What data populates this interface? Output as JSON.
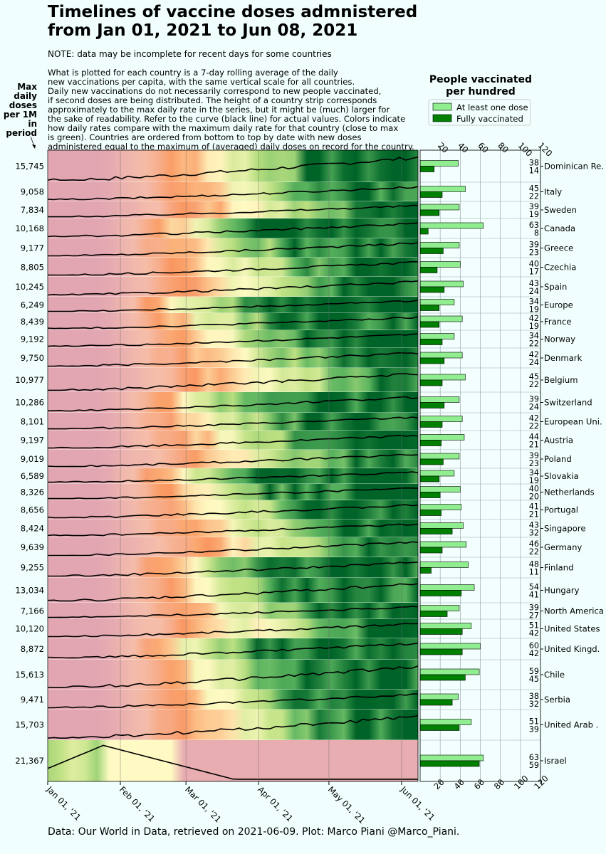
{
  "title": "Timelines of vaccine doses admnistered\nfrom Jan 01, 2021 to Jun 08, 2021",
  "note": "NOTE: data may be incomplete for recent days for some countries",
  "description": "What is plotted for each country is a 7-day rolling average of the daily\nnew vaccinations per capita, with the same vertical scale for all countries.\nDaily new vaccinations do not necessarily correspond to new people vaccinated,\nif second doses are being distributed. The height of a country strip corresponds\napproximately to the max daily rate in the series, but it might be (much) larger for\nthe sake of readability. Refer to the curve (black line) for actual values. Colors indicate\nhow daily rates compare with the maximum daily rate for that country (close to max\nis green). Countries are ordered from bottom to top by date with new doses\nadministered equal to the maximum of (averaged) daily doses on record for the country.",
  "max_label": "Max\ndaily\ndoses\nper 1M\nin\nperiod",
  "right_title": "People vaccinated\nper hundred",
  "legend": {
    "at_least_one": "At least one dose",
    "fully": "Fully vaccinated"
  },
  "footer": "Data: Our World in Data, retrieved on 2021-06-09. Plot: Marco Piani @Marco_Piani.",
  "colors": {
    "background": "#f0fffe",
    "at_least_one": "#90ee90",
    "fully": "#008000",
    "curve": "#000000"
  },
  "chart_data": [
    {
      "type": "area",
      "title": "Timelines of vaccine doses admnistered from Jan 01, 2021 to Jun 08, 2021",
      "xlabel": "",
      "ylabel": "Max daily doses per 1M in period",
      "x_range": [
        "2021-01-01",
        "2021-06-08"
      ],
      "x_ticks": [
        "Jan 01, '21",
        "Feb 01, '21",
        "Mar 01, '21",
        "Apr 01, '21",
        "May 01, '21",
        "Jun 01, '21"
      ],
      "rows": [
        {
          "country": "Dominican Re.",
          "max_daily_per_1M": "15,745"
        },
        {
          "country": "Italy",
          "max_daily_per_1M": "9,058"
        },
        {
          "country": "Sweden",
          "max_daily_per_1M": "7,834"
        },
        {
          "country": "Canada",
          "max_daily_per_1M": "10,168"
        },
        {
          "country": "Greece",
          "max_daily_per_1M": "9,177"
        },
        {
          "country": "Czechia",
          "max_daily_per_1M": "8,805"
        },
        {
          "country": "Spain",
          "max_daily_per_1M": "10,245"
        },
        {
          "country": "Europe",
          "max_daily_per_1M": "6,249"
        },
        {
          "country": "France",
          "max_daily_per_1M": "8,439"
        },
        {
          "country": "Norway",
          "max_daily_per_1M": "9,192"
        },
        {
          "country": "Denmark",
          "max_daily_per_1M": "9,750"
        },
        {
          "country": "Belgium",
          "max_daily_per_1M": "10,977"
        },
        {
          "country": "Switzerland",
          "max_daily_per_1M": "10,286"
        },
        {
          "country": "European Uni.",
          "max_daily_per_1M": "8,101"
        },
        {
          "country": "Austria",
          "max_daily_per_1M": "9,197"
        },
        {
          "country": "Poland",
          "max_daily_per_1M": "9,019"
        },
        {
          "country": "Slovakia",
          "max_daily_per_1M": "6,589"
        },
        {
          "country": "Netherlands",
          "max_daily_per_1M": "8,326"
        },
        {
          "country": "Portugal",
          "max_daily_per_1M": "8,656"
        },
        {
          "country": "Singapore",
          "max_daily_per_1M": "8,424"
        },
        {
          "country": "Germany",
          "max_daily_per_1M": "9,639"
        },
        {
          "country": "Finland",
          "max_daily_per_1M": "9,255"
        },
        {
          "country": "Hungary",
          "max_daily_per_1M": "13,034"
        },
        {
          "country": "North America",
          "max_daily_per_1M": "7,166"
        },
        {
          "country": "United States",
          "max_daily_per_1M": "10,120"
        },
        {
          "country": "United Kingd.",
          "max_daily_per_1M": "8,872"
        },
        {
          "country": "Chile",
          "max_daily_per_1M": "15,613"
        },
        {
          "country": "Serbia",
          "max_daily_per_1M": "9,471"
        },
        {
          "country": "United Arab .",
          "max_daily_per_1M": "15,703"
        },
        {
          "country": "Israel",
          "max_daily_per_1M": "21,367"
        }
      ]
    },
    {
      "type": "bar",
      "title": "People vaccinated per hundred",
      "orientation": "horizontal",
      "xlim": [
        0,
        120
      ],
      "x_ticks": [
        20,
        40,
        60,
        80,
        100,
        120
      ],
      "grid": true,
      "legend": "top",
      "categories": [
        "Dominican Re.",
        "Italy",
        "Sweden",
        "Canada",
        "Greece",
        "Czechia",
        "Spain",
        "Europe",
        "France",
        "Norway",
        "Denmark",
        "Belgium",
        "Switzerland",
        "European Uni.",
        "Austria",
        "Poland",
        "Slovakia",
        "Netherlands",
        "Portugal",
        "Singapore",
        "Germany",
        "Finland",
        "Hungary",
        "North America",
        "United States",
        "United Kingd.",
        "Chile",
        "Serbia",
        "United Arab .",
        "Israel"
      ],
      "series": [
        {
          "name": "At least one dose",
          "values": [
            38,
            45,
            39,
            63,
            39,
            40,
            43,
            34,
            42,
            34,
            42,
            45,
            39,
            42,
            44,
            39,
            34,
            40,
            41,
            43,
            46,
            48,
            54,
            39,
            51,
            60,
            59,
            38,
            51,
            63
          ]
        },
        {
          "name": "Fully vaccinated",
          "values": [
            14,
            22,
            19,
            8,
            23,
            17,
            24,
            19,
            19,
            22,
            24,
            22,
            24,
            22,
            21,
            23,
            19,
            20,
            21,
            32,
            22,
            11,
            41,
            27,
            42,
            42,
            45,
            32,
            39,
            59
          ]
        }
      ]
    }
  ]
}
